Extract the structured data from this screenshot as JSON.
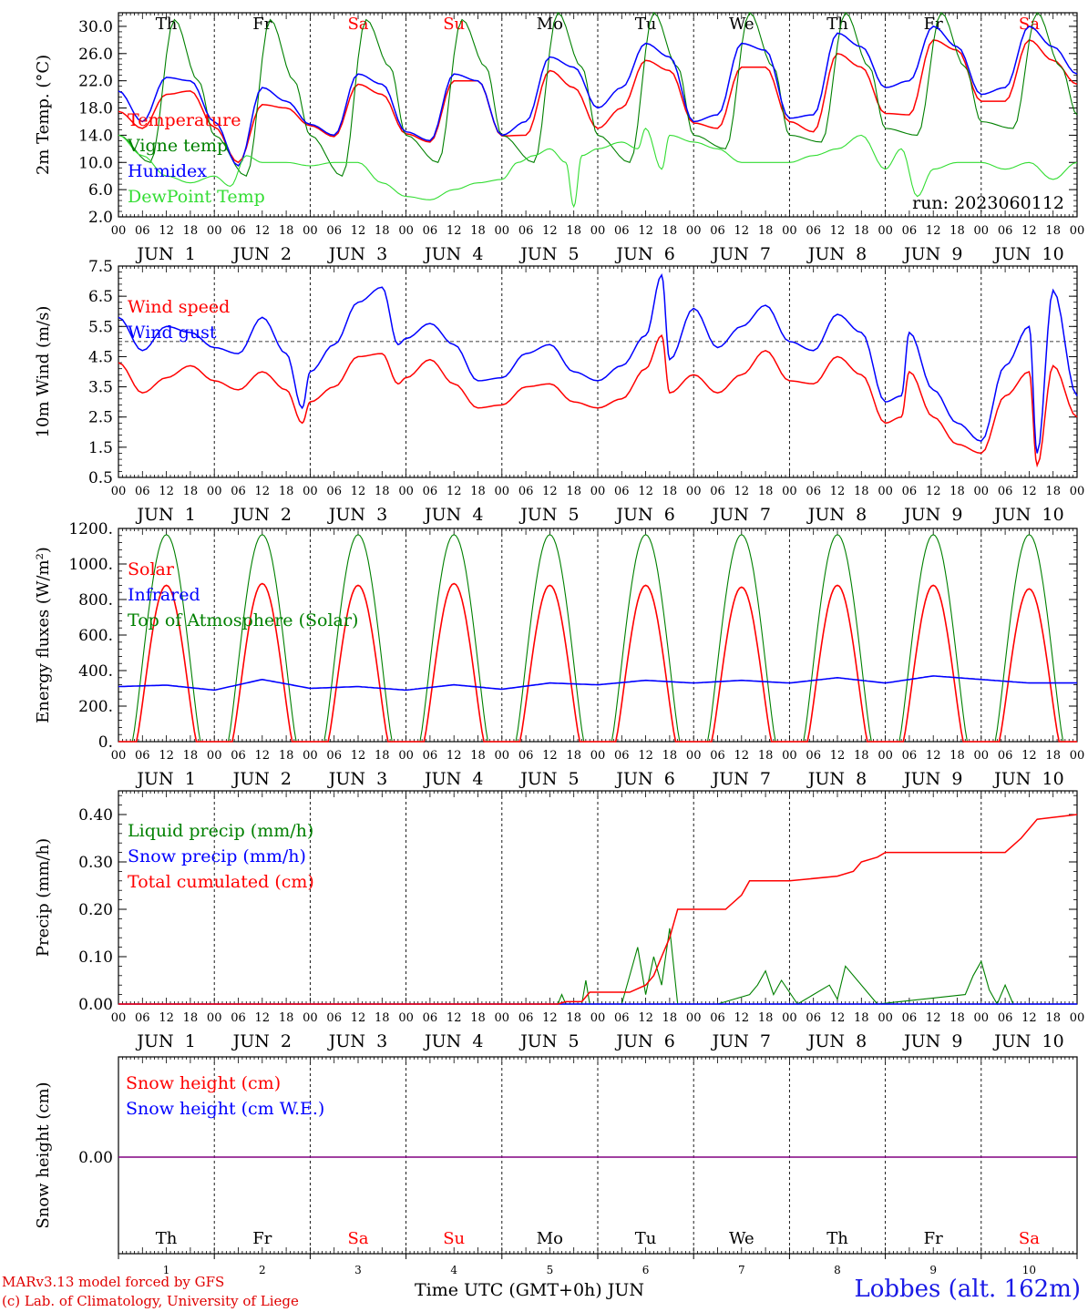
{
  "run_label": "run: 2023060112",
  "footer": {
    "model": "MARv3.13 model forced by GFS",
    "lab": "(c) Lab. of Climatology, University of Liege",
    "station": "Lobbes (alt. 162m)",
    "xaxis_title": "Time UTC (GMT+0h)",
    "month_label": "JUN"
  },
  "colors": {
    "red": "#ff0000",
    "blue": "#0000ff",
    "dark_green": "#008000",
    "light_green": "#33dd33",
    "purple": "#800080"
  },
  "chart_data": [
    {
      "type": "line",
      "id": "temp",
      "ylabel": "2m Temp. (°C)",
      "ylim": [
        2,
        32
      ],
      "yticks": [
        "2.0",
        "6.0",
        "10.0",
        "14.0",
        "18.0",
        "22.0",
        "26.0",
        "30.0"
      ],
      "ytick_values": [
        2,
        6,
        10,
        14,
        18,
        22,
        26,
        30
      ],
      "x_hours_range": [
        0,
        240
      ],
      "hour_tick_labels": [
        "00",
        "06",
        "12",
        "18"
      ],
      "date_labels": [
        "JUN 1",
        "JUN 2",
        "JUN 3",
        "JUN 4",
        "JUN 5",
        "JUN 6",
        "JUN 7",
        "JUN 8",
        "JUN 9",
        "JUN 10"
      ],
      "weekday_labels": [
        "Th",
        "Fr",
        "Sa",
        "Su",
        "Mo",
        "Tu",
        "We",
        "Th",
        "Fr",
        "Sa"
      ],
      "weekday_colors": [
        "#000000",
        "#000000",
        "#ff0000",
        "#ff0000",
        "#000000",
        "#000000",
        "#000000",
        "#000000",
        "#000000",
        "#ff0000"
      ],
      "series": [
        {
          "name": "Temperature",
          "color": "#ff0000",
          "x_hours": [
            0,
            6,
            12,
            18,
            24,
            30,
            36,
            42,
            48,
            54,
            60,
            66,
            72,
            78,
            84,
            90,
            96,
            102,
            108,
            114,
            120,
            126,
            132,
            138,
            144,
            150,
            156,
            162,
            168,
            174,
            180,
            186,
            192,
            198,
            204,
            210,
            216,
            222,
            228,
            234,
            240
          ],
          "values": [
            17.5,
            15,
            20,
            20.5,
            15.2,
            10,
            18.5,
            18,
            15.4,
            13.8,
            21.5,
            20,
            14.2,
            13,
            22,
            22,
            13.9,
            14,
            23.5,
            21,
            15,
            18,
            25,
            23.5,
            15.8,
            15,
            24,
            24,
            16,
            14.5,
            26,
            24,
            17.2,
            17,
            28,
            26.5,
            19,
            19,
            28,
            25,
            21.5
          ]
        },
        {
          "name": "Vigne temp",
          "color": "#008000",
          "x_hours": [
            0,
            8,
            14,
            20,
            24,
            32,
            38,
            44,
            48,
            56,
            62,
            68,
            72,
            80,
            86,
            92,
            96,
            104,
            110,
            116,
            120,
            128,
            134,
            140,
            144,
            152,
            158,
            164,
            168,
            176,
            182,
            188,
            192,
            200,
            206,
            212,
            216,
            224,
            230,
            236,
            240
          ],
          "values": [
            14,
            10,
            31,
            22,
            14,
            8,
            31,
            22,
            14,
            8,
            31,
            24,
            14,
            10,
            31,
            24,
            14,
            10,
            32,
            24,
            14,
            10,
            32,
            24,
            14,
            12,
            32,
            24,
            14,
            13,
            32,
            24,
            15,
            14,
            32,
            24,
            16,
            15,
            32,
            24,
            17
          ]
        },
        {
          "name": "Humidex",
          "color": "#0000ff",
          "x_hours": [
            0,
            6,
            12,
            18,
            24,
            30,
            36,
            42,
            48,
            54,
            60,
            66,
            72,
            78,
            84,
            90,
            96,
            102,
            108,
            114,
            120,
            126,
            132,
            138,
            144,
            150,
            156,
            162,
            168,
            174,
            180,
            186,
            192,
            198,
            204,
            210,
            216,
            222,
            228,
            234,
            240
          ],
          "values": [
            20.5,
            16,
            22.5,
            22,
            16,
            9.5,
            21,
            19,
            15.6,
            14,
            23,
            21.5,
            14.5,
            13.2,
            23,
            22,
            14,
            16,
            25.5,
            24,
            18,
            21,
            27.5,
            25.5,
            16,
            17,
            27.5,
            26.5,
            16.5,
            17,
            29,
            27,
            21,
            22,
            30,
            27,
            20,
            21,
            30,
            27,
            23
          ]
        },
        {
          "name": "DewPoint Temp",
          "color": "#33dd33",
          "x_hours": [
            0,
            6,
            12,
            18,
            24,
            28,
            32,
            36,
            42,
            48,
            54,
            60,
            66,
            72,
            78,
            84,
            90,
            96,
            100,
            104,
            108,
            112,
            114,
            116,
            120,
            126,
            130,
            132,
            136,
            138,
            144,
            150,
            156,
            162,
            168,
            174,
            180,
            186,
            192,
            196,
            200,
            204,
            210,
            216,
            222,
            228,
            234,
            240
          ],
          "values": [
            14,
            11,
            8,
            7,
            8,
            6.5,
            11,
            10,
            10,
            9.5,
            10,
            10,
            7,
            5,
            4.5,
            6,
            7,
            7.5,
            10,
            11,
            12,
            10,
            3.5,
            11,
            12,
            13,
            12,
            15,
            9,
            14,
            13,
            12,
            10,
            10,
            10,
            11,
            12,
            14,
            9,
            12,
            5,
            9,
            10,
            10,
            9,
            10,
            7.5,
            10
          ]
        }
      ]
    },
    {
      "type": "line",
      "id": "wind",
      "ylabel": "10m Wind (m/s)",
      "ylim": [
        0.5,
        7.5
      ],
      "yticks": [
        "0.5",
        "1.5",
        "2.5",
        "3.5",
        "4.5",
        "5.5",
        "6.5",
        "7.5"
      ],
      "ytick_values": [
        0.5,
        1.5,
        2.5,
        3.5,
        4.5,
        5.5,
        6.5,
        7.5
      ],
      "reference_line": 5,
      "series": [
        {
          "name": "Wind speed",
          "color": "#ff0000",
          "x_hours": [
            0,
            6,
            12,
            18,
            24,
            30,
            36,
            42,
            46,
            48,
            54,
            60,
            66,
            70,
            72,
            78,
            84,
            90,
            96,
            102,
            108,
            114,
            120,
            126,
            132,
            136,
            138,
            144,
            150,
            156,
            162,
            168,
            174,
            180,
            186,
            192,
            196,
            198,
            204,
            210,
            216,
            222,
            228,
            230,
            234,
            240
          ],
          "values": [
            4.3,
            3.3,
            3.8,
            4.2,
            3.7,
            3.4,
            4.0,
            3.4,
            2.3,
            3.0,
            3.5,
            4.5,
            4.6,
            3.6,
            3.8,
            4.4,
            3.6,
            2.8,
            2.9,
            3.5,
            3.6,
            3.0,
            2.8,
            3.1,
            4.1,
            5.2,
            3.3,
            3.9,
            3.3,
            3.9,
            4.7,
            3.7,
            3.6,
            4.5,
            3.9,
            2.3,
            2.5,
            4.0,
            2.5,
            1.6,
            1.3,
            3.2,
            4.0,
            0.9,
            4.2,
            2.5
          ]
        },
        {
          "name": "Wind gust",
          "color": "#0000ff",
          "x_hours": [
            0,
            6,
            12,
            18,
            24,
            30,
            36,
            42,
            46,
            48,
            54,
            60,
            66,
            70,
            72,
            78,
            84,
            90,
            96,
            102,
            108,
            114,
            120,
            126,
            132,
            136,
            138,
            144,
            150,
            156,
            162,
            168,
            174,
            180,
            186,
            192,
            196,
            198,
            204,
            210,
            216,
            222,
            228,
            230,
            234,
            240
          ],
          "values": [
            5.8,
            4.7,
            5.5,
            5.3,
            4.8,
            4.6,
            5.8,
            4.6,
            2.8,
            4.0,
            4.9,
            6.3,
            6.8,
            4.9,
            5.1,
            5.6,
            4.9,
            3.7,
            3.8,
            4.6,
            4.9,
            4.0,
            3.7,
            4.2,
            5.2,
            7.2,
            4.4,
            6.1,
            4.8,
            5.5,
            6.2,
            5.0,
            4.7,
            5.9,
            5.3,
            3.0,
            3.2,
            5.3,
            3.4,
            2.3,
            1.7,
            4.2,
            5.5,
            1.3,
            6.7,
            3.2
          ]
        }
      ]
    },
    {
      "type": "line",
      "id": "energy",
      "ylabel": "Energy fluxes (W/m²)",
      "ylim": [
        0,
        1200
      ],
      "yticks": [
        "0.",
        "200.",
        "400.",
        "600.",
        "800.",
        "1000.",
        "1200."
      ],
      "ytick_values": [
        0,
        200,
        400,
        600,
        800,
        1000,
        1200
      ],
      "solar_peaks": [
        880,
        890,
        880,
        890,
        880,
        880,
        870,
        880,
        880,
        860
      ],
      "toa_peak": 1165,
      "infrared_values": [
        310,
        318,
        290,
        350,
        300,
        310,
        290,
        320,
        295,
        330,
        320,
        345,
        330,
        345,
        330,
        360,
        330,
        370,
        350,
        330
      ],
      "series": [
        {
          "name": "Solar",
          "color": "#ff0000"
        },
        {
          "name": "Infrared",
          "color": "#0000ff"
        },
        {
          "name": "Top of Atmosphere (Solar)",
          "color": "#008000"
        }
      ]
    },
    {
      "type": "line",
      "id": "precip",
      "ylabel": "Precip (mm/h)",
      "ylim": [
        0,
        0.45
      ],
      "yticks": [
        "0.00",
        "0.10",
        "0.20",
        "0.30",
        "0.40"
      ],
      "ytick_values": [
        0,
        0.1,
        0.2,
        0.3,
        0.4
      ],
      "series": [
        {
          "name": "Liquid precip (mm/h)",
          "color": "#008000",
          "x_hours": [
            110,
            111,
            112,
            116,
            117,
            118,
            126,
            130,
            132,
            134,
            136,
            138,
            140,
            150,
            158,
            160,
            162,
            164,
            166,
            170,
            178,
            180,
            182,
            188,
            190,
            212,
            214,
            216,
            218,
            220,
            222,
            224
          ],
          "values": [
            0,
            0.02,
            0,
            0,
            0.05,
            0,
            0,
            0.12,
            0.02,
            0.1,
            0.04,
            0.16,
            0,
            0,
            0.02,
            0.04,
            0.07,
            0.02,
            0.05,
            0,
            0.04,
            0.01,
            0.08,
            0.02,
            0,
            0.02,
            0.06,
            0.09,
            0.03,
            0,
            0.04,
            0
          ]
        },
        {
          "name": "Snow precip (mm/h)",
          "color": "#0000ff",
          "x_hours": [
            0,
            240
          ],
          "values": [
            0,
            0
          ]
        },
        {
          "name": "Total cumulated (cm)",
          "color": "#ff0000",
          "x_hours": [
            0,
            110,
            112,
            116,
            118,
            128,
            132,
            134,
            136,
            138,
            140,
            152,
            156,
            158,
            160,
            168,
            180,
            184,
            186,
            190,
            192,
            198,
            200,
            210,
            222,
            226,
            230,
            240
          ],
          "values": [
            0,
            0,
            0.005,
            0.005,
            0.025,
            0.025,
            0.04,
            0.06,
            0.1,
            0.14,
            0.2,
            0.2,
            0.23,
            0.26,
            0.26,
            0.26,
            0.27,
            0.28,
            0.3,
            0.31,
            0.32,
            0.32,
            0.32,
            0.32,
            0.32,
            0.35,
            0.39,
            0.4
          ]
        }
      ]
    },
    {
      "type": "line",
      "id": "snow",
      "ylabel": "Snow height (cm)",
      "yticks": [
        "0.00"
      ],
      "ytick_values": [
        0
      ],
      "bottom_day_numbers": [
        "1",
        "2",
        "3",
        "4",
        "5",
        "6",
        "7",
        "8",
        "9",
        "10"
      ],
      "series": [
        {
          "name": "Snow height (cm)",
          "color": "#ff0000",
          "x_hours": [
            0,
            240
          ],
          "values": [
            0,
            0
          ]
        },
        {
          "name": "Snow height (cm W.E.)",
          "color": "#0000ff",
          "x_hours": [
            0,
            240
          ],
          "values": [
            0,
            0
          ]
        }
      ]
    }
  ]
}
